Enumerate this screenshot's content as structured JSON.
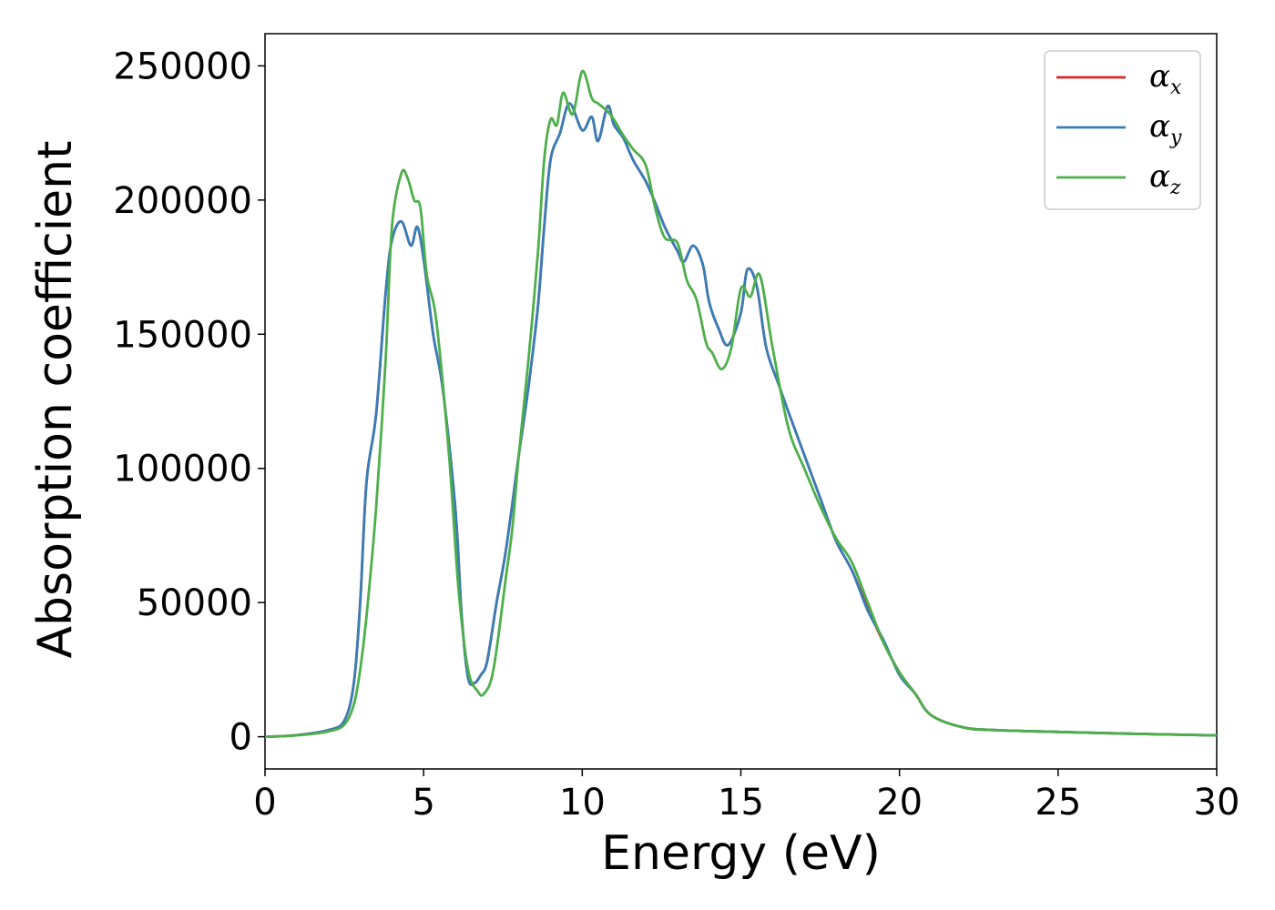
{
  "chart_data": {
    "type": "line",
    "title": "",
    "xlabel": "Energy (eV)",
    "ylabel": "Absorption coefficient",
    "xlim": [
      0,
      30
    ],
    "ylim": [
      -12000,
      262000
    ],
    "xticks": [
      0,
      5,
      10,
      15,
      20,
      25,
      30
    ],
    "yticks": [
      0,
      50000,
      100000,
      150000,
      200000,
      250000
    ],
    "grid": false,
    "legend_position": "top-right",
    "series": [
      {
        "name": "αx",
        "symbol": "α",
        "subscript": "x",
        "color": "#d62728",
        "x": [
          0,
          1,
          2,
          2.5,
          2.8,
          3.0,
          3.2,
          3.5,
          3.8,
          4.0,
          4.3,
          4.6,
          4.8,
          5.0,
          5.3,
          5.6,
          6.0,
          6.2,
          6.4,
          6.6,
          6.8,
          7.0,
          7.3,
          7.6,
          8.0,
          8.3,
          8.6,
          8.8,
          9.0,
          9.3,
          9.6,
          10.0,
          10.3,
          10.5,
          10.8,
          11.0,
          11.3,
          11.6,
          12.0,
          12.3,
          12.6,
          13.0,
          13.2,
          13.5,
          13.8,
          14.0,
          14.3,
          14.6,
          15.0,
          15.2,
          15.5,
          15.8,
          16.2,
          16.5,
          17.0,
          17.5,
          18.0,
          18.5,
          19.0,
          19.5,
          20.0,
          20.5,
          21.0,
          22.0,
          23.0,
          25.0,
          27.0,
          30.0
        ],
        "values": [
          0,
          600,
          2500,
          6000,
          20000,
          50000,
          95000,
          120000,
          165000,
          185000,
          192000,
          183000,
          190000,
          178000,
          150000,
          130000,
          85000,
          45000,
          22000,
          20000,
          23000,
          28000,
          50000,
          70000,
          105000,
          130000,
          160000,
          190000,
          215000,
          225000,
          236000,
          226000,
          231000,
          222000,
          235000,
          228000,
          223000,
          215000,
          207000,
          199000,
          190000,
          181000,
          177000,
          183000,
          176000,
          162000,
          152000,
          146000,
          158000,
          174000,
          168000,
          145000,
          131000,
          121000,
          105000,
          89000,
          73000,
          62000,
          48000,
          35000,
          24000,
          16000,
          8000,
          3500,
          2500,
          1800,
          1200,
          500
        ]
      },
      {
        "name": "αy",
        "symbol": "α",
        "subscript": "y",
        "color": "#377eb8",
        "x": [
          0,
          1,
          2,
          2.5,
          2.8,
          3.0,
          3.2,
          3.5,
          3.8,
          4.0,
          4.3,
          4.6,
          4.8,
          5.0,
          5.3,
          5.6,
          6.0,
          6.2,
          6.4,
          6.6,
          6.8,
          7.0,
          7.3,
          7.6,
          8.0,
          8.3,
          8.6,
          8.8,
          9.0,
          9.3,
          9.6,
          10.0,
          10.3,
          10.5,
          10.8,
          11.0,
          11.3,
          11.6,
          12.0,
          12.3,
          12.6,
          13.0,
          13.2,
          13.5,
          13.8,
          14.0,
          14.3,
          14.6,
          15.0,
          15.2,
          15.5,
          15.8,
          16.2,
          16.5,
          17.0,
          17.5,
          18.0,
          18.5,
          19.0,
          19.5,
          20.0,
          20.5,
          21.0,
          22.0,
          23.0,
          25.0,
          27.0,
          30.0
        ],
        "values": [
          0,
          600,
          2500,
          6000,
          20000,
          50000,
          95000,
          120000,
          165000,
          185000,
          192000,
          183000,
          190000,
          178000,
          150000,
          130000,
          85000,
          45000,
          22000,
          20000,
          23000,
          28000,
          50000,
          70000,
          105000,
          130000,
          160000,
          190000,
          215000,
          225000,
          236000,
          226000,
          231000,
          222000,
          235000,
          228000,
          223000,
          215000,
          207000,
          199000,
          190000,
          181000,
          177000,
          183000,
          176000,
          162000,
          152000,
          146000,
          158000,
          174000,
          168000,
          145000,
          131000,
          121000,
          105000,
          89000,
          73000,
          62000,
          47000,
          36000,
          23000,
          16000,
          8000,
          3500,
          2500,
          1800,
          1200,
          500
        ]
      },
      {
        "name": "αz",
        "symbol": "α",
        "subscript": "z",
        "color": "#4daf4a",
        "x": [
          0,
          1,
          2,
          2.5,
          2.8,
          3.0,
          3.2,
          3.5,
          3.8,
          4.0,
          4.3,
          4.5,
          4.7,
          4.9,
          5.1,
          5.4,
          5.8,
          6.1,
          6.4,
          6.7,
          6.9,
          7.2,
          7.6,
          7.8,
          8.0,
          8.3,
          8.6,
          8.8,
          9.0,
          9.2,
          9.4,
          9.7,
          10.0,
          10.3,
          10.5,
          10.8,
          11.0,
          11.3,
          11.6,
          12.0,
          12.3,
          12.6,
          13.0,
          13.3,
          13.6,
          13.9,
          14.1,
          14.4,
          14.7,
          15.0,
          15.3,
          15.6,
          16.0,
          16.5,
          17.0,
          17.5,
          18.0,
          18.5,
          19.0,
          19.5,
          20.0,
          20.5,
          21.0,
          22.0,
          23.0,
          25.0,
          27.0,
          30.0
        ],
        "values": [
          0,
          500,
          2000,
          4500,
          12000,
          25000,
          45000,
          85000,
          140000,
          190000,
          210000,
          208000,
          200000,
          197000,
          172000,
          155000,
          105000,
          55000,
          25000,
          17000,
          16000,
          25000,
          60000,
          78000,
          105000,
          140000,
          180000,
          215000,
          230000,
          228000,
          240000,
          232000,
          248000,
          238000,
          236000,
          233000,
          230000,
          224000,
          219000,
          213000,
          197000,
          186000,
          184000,
          170000,
          163000,
          147000,
          143000,
          137000,
          145000,
          167000,
          164000,
          172000,
          145000,
          115000,
          100000,
          86000,
          74000,
          65000,
          50000,
          35000,
          24000,
          16000,
          8000,
          3500,
          2500,
          1800,
          1200,
          500
        ]
      }
    ]
  }
}
